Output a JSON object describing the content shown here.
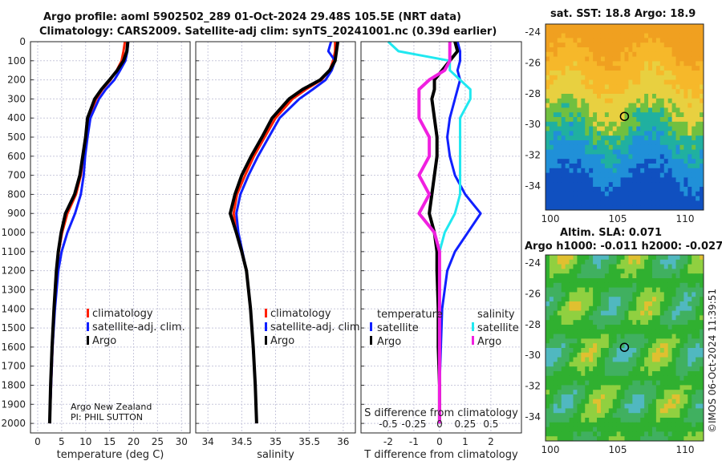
{
  "title_line1": "Argo profile: aoml 5902502_289 01-Oct-2024 29.48S 105.5E (NRT data)",
  "title_line2": "Climatology: CARS2009. Satellite-adj clim: synTS_20241001.nc (0.39d earlier)",
  "credit": "©IMOS 06-Oct-2024 11:39:51",
  "float_info": {
    "line1": "Argo New Zealand",
    "line2": "PI: PHIL SUTTON"
  },
  "colors": {
    "climatology": "#ff2000",
    "satellite": "#1020ff",
    "argo": "#000000",
    "sal_satellite": "#20e8f0",
    "sal_argo": "#f020e0"
  },
  "chart_data": [
    {
      "type": "line",
      "name": "temperature",
      "xlabel": "temperature (deg C)",
      "xlim": [
        -1.5,
        31.8
      ],
      "ylim": [
        2050,
        0
      ],
      "xticks": [
        0,
        5,
        10,
        15,
        20,
        25,
        30
      ],
      "yticks": [
        0,
        100,
        200,
        300,
        400,
        500,
        600,
        700,
        800,
        900,
        1000,
        1100,
        1200,
        1300,
        1400,
        1500,
        1600,
        1700,
        1800,
        1900,
        2000
      ],
      "depth": [
        0,
        50,
        100,
        150,
        200,
        250,
        300,
        400,
        500,
        600,
        700,
        800,
        900,
        1000,
        1100,
        1200,
        1400,
        1600,
        1800,
        2000
      ],
      "legend": [
        "climatology",
        "satellite-adj. clim.",
        "Argo"
      ],
      "series": [
        {
          "name": "climatology",
          "values": [
            18.2,
            17.9,
            17.5,
            16.5,
            15.2,
            13.5,
            12.2,
            10.6,
            10.1,
            9.5,
            9.0,
            8.0,
            6.2,
            5.1,
            4.4,
            4.0,
            3.5,
            3.1,
            2.8,
            2.5
          ]
        },
        {
          "name": "satellite-adj. clim.",
          "values": [
            18.9,
            18.7,
            18.3,
            17.2,
            16.0,
            14.2,
            12.8,
            11.0,
            10.4,
            9.9,
            9.6,
            9.0,
            7.8,
            6.2,
            5.0,
            4.3,
            3.6,
            3.1,
            2.8,
            2.5
          ]
        },
        {
          "name": "Argo",
          "values": [
            18.8,
            18.6,
            17.9,
            16.6,
            15.0,
            13.3,
            11.9,
            10.4,
            10.0,
            9.4,
            8.8,
            7.7,
            5.8,
            4.9,
            4.3,
            3.9,
            3.4,
            3.0,
            2.7,
            2.5
          ]
        }
      ]
    },
    {
      "type": "line",
      "name": "salinity",
      "xlabel": "salinity",
      "xlim": [
        33.82,
        36.18
      ],
      "ylim": [
        2050,
        0
      ],
      "xticks": [
        34,
        34.5,
        35,
        35.5,
        36
      ],
      "depth": [
        0,
        50,
        100,
        150,
        200,
        250,
        300,
        400,
        500,
        600,
        700,
        800,
        900,
        1000,
        1100,
        1200,
        1400,
        1600,
        1800,
        2000
      ],
      "legend": [
        "climatology",
        "satellite-adj. clim.",
        "Argo"
      ],
      "series": [
        {
          "name": "climatology",
          "values": [
            35.88,
            35.88,
            35.85,
            35.8,
            35.68,
            35.45,
            35.25,
            35.0,
            34.84,
            34.68,
            34.55,
            34.43,
            34.38,
            34.43,
            34.5,
            34.57,
            34.63,
            34.67,
            34.7,
            34.72
          ]
        },
        {
          "name": "satellite-adj. clim.",
          "values": [
            35.82,
            35.78,
            35.88,
            35.83,
            35.74,
            35.55,
            35.35,
            35.06,
            34.9,
            34.74,
            34.6,
            34.48,
            34.42,
            34.45,
            34.51,
            34.57,
            34.63,
            34.67,
            34.7,
            34.72
          ]
        },
        {
          "name": "Argo",
          "values": [
            35.92,
            35.9,
            35.88,
            35.8,
            35.66,
            35.4,
            35.2,
            34.95,
            34.8,
            34.64,
            34.5,
            34.4,
            34.33,
            34.42,
            34.5,
            34.57,
            34.63,
            34.67,
            34.7,
            34.72
          ]
        }
      ]
    },
    {
      "type": "line",
      "name": "difference",
      "xlabel": "T difference from climatology",
      "x2label": "S difference from climatology",
      "xlim": [
        -3.06,
        3.19
      ],
      "ylim": [
        2050,
        0
      ],
      "xticks": [
        -2,
        -1,
        0,
        1,
        2
      ],
      "x2ticks": [
        "-0.5",
        "-0.25",
        "0",
        "0.25",
        "0.5"
      ],
      "legend_titles": [
        "temperature",
        "salinity"
      ],
      "legend_t": [
        "satellite",
        "Argo"
      ],
      "legend_s": [
        "satellite",
        "Argo"
      ],
      "depth": [
        0,
        50,
        100,
        150,
        200,
        250,
        300,
        400,
        500,
        600,
        700,
        800,
        900,
        1000,
        1100,
        1200,
        1400,
        1600,
        1800,
        2000
      ],
      "series": [
        {
          "name": "T satellite",
          "values": [
            0.7,
            0.8,
            0.8,
            0.7,
            0.8,
            0.7,
            0.6,
            0.4,
            0.3,
            0.4,
            0.6,
            1.0,
            1.6,
            1.1,
            0.6,
            0.3,
            0.1,
            0.05,
            0,
            0
          ]
        },
        {
          "name": "T Argo",
          "values": [
            0.6,
            0.7,
            0.4,
            0.1,
            -0.2,
            -0.2,
            -0.3,
            -0.2,
            -0.1,
            -0.1,
            -0.2,
            -0.3,
            -0.4,
            -0.2,
            -0.1,
            -0.1,
            -0.05,
            -0.05,
            0,
            0
          ]
        },
        {
          "name": "S satellite",
          "values": [
            -0.5,
            -0.4,
            0.1,
            0.1,
            0.2,
            0.3,
            0.3,
            0.2,
            0.2,
            0.2,
            0.2,
            0.2,
            0.15,
            0.05,
            0,
            0,
            0,
            0,
            0,
            0
          ]
        },
        {
          "name": "S Argo",
          "values": [
            0.1,
            0.1,
            0.1,
            0.05,
            -0.1,
            -0.2,
            -0.2,
            -0.2,
            -0.1,
            -0.1,
            -0.2,
            -0.1,
            -0.2,
            -0.05,
            0,
            0,
            0,
            0,
            0,
            0
          ]
        }
      ]
    }
  ],
  "map_sst": {
    "title": "sat. SST: 18.8 Argo: 18.9",
    "yticks": [
      -24,
      -26,
      -28,
      -30,
      -32,
      -34
    ],
    "xticks": [
      100,
      105,
      110
    ]
  },
  "map_sla": {
    "title1": "Altim. SLA: 0.071",
    "title2": "Argo h1000: -0.011 h2000: -0.027",
    "yticks": [
      -24,
      -26,
      -28,
      -30,
      -32,
      -34
    ],
    "xticks": [
      100,
      105,
      110
    ]
  },
  "argo_position": {
    "lon": 105.5,
    "lat": -29.48
  }
}
